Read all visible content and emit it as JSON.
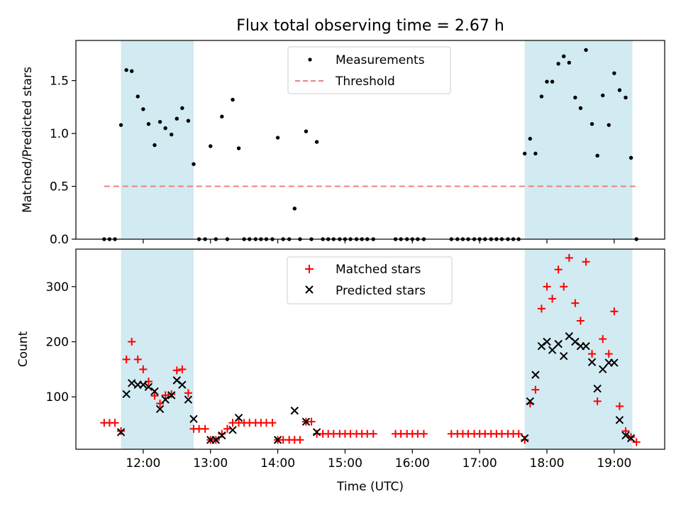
{
  "figure": {
    "title": "Flux total observing time = 2.67 h"
  },
  "chart_data": [
    {
      "type": "scatter",
      "ylabel": "Matched/Predicted stars",
      "xlabel": "",
      "xlim": [
        11.0,
        19.75
      ],
      "ylim": [
        0.0,
        1.88
      ],
      "yticks": [
        0.0,
        0.5,
        1.0,
        1.5
      ],
      "ytick_labels": [
        "0.0",
        "0.5",
        "1.0",
        "1.5"
      ],
      "xticks": [
        12,
        13,
        14,
        15,
        16,
        17,
        18,
        19
      ],
      "shaded_intervals": [
        [
          11.67,
          12.75
        ],
        [
          17.67,
          19.27
        ]
      ],
      "shade_color": "#add8e6",
      "legend_placement": "top-center",
      "series": [
        {
          "name": "Measurements",
          "kind": "points",
          "color": "#000000",
          "x": [
            11.42,
            11.5,
            11.58,
            11.67,
            11.75,
            11.83,
            11.92,
            12.0,
            12.08,
            12.17,
            12.25,
            12.33,
            12.42,
            12.5,
            12.58,
            12.67,
            12.75,
            12.83,
            12.92,
            13.0,
            13.08,
            13.17,
            13.25,
            13.33,
            13.42,
            13.5,
            13.58,
            13.67,
            13.75,
            13.83,
            13.92,
            14.0,
            14.08,
            14.17,
            14.25,
            14.33,
            14.42,
            14.5,
            14.58,
            14.67,
            14.75,
            14.83,
            14.92,
            15.0,
            15.08,
            15.17,
            15.25,
            15.33,
            15.42,
            15.75,
            15.83,
            15.92,
            16.0,
            16.08,
            16.17,
            16.58,
            16.67,
            16.75,
            16.83,
            16.92,
            17.0,
            17.08,
            17.17,
            17.25,
            17.33,
            17.42,
            17.5,
            17.58,
            17.67,
            17.75,
            17.83,
            17.92,
            18.0,
            18.08,
            18.17,
            18.25,
            18.33,
            18.42,
            18.5,
            18.58,
            18.67,
            18.75,
            18.83,
            18.92,
            19.0,
            19.08,
            19.17,
            19.25,
            19.33
          ],
          "y": [
            0,
            0,
            0,
            1.08,
            1.6,
            1.59,
            1.35,
            1.23,
            1.09,
            0.89,
            1.11,
            1.05,
            0.99,
            1.14,
            1.24,
            1.12,
            0.71,
            0,
            0,
            0.88,
            0,
            1.16,
            0,
            1.32,
            0.86,
            0,
            0,
            0,
            0,
            0,
            0,
            0.96,
            0,
            0,
            0.29,
            0,
            1.02,
            0,
            0.92,
            0,
            0,
            0,
            0,
            0,
            0,
            0,
            0,
            0,
            0,
            0,
            0,
            0,
            0,
            0,
            0,
            0,
            0,
            0,
            0,
            0,
            0,
            0,
            0,
            0,
            0,
            0,
            0,
            0,
            0.81,
            0.95,
            0.81,
            1.35,
            1.49,
            1.49,
            1.66,
            1.73,
            1.67,
            1.34,
            1.24,
            1.79,
            1.09,
            0.79,
            1.36,
            1.08,
            1.57,
            1.41,
            1.34,
            0.77,
            0
          ]
        },
        {
          "name": "Threshold",
          "kind": "dashed-line",
          "color": "#f08080",
          "x": [
            11.42,
            19.33
          ],
          "y": [
            0.5,
            0.5
          ]
        }
      ]
    },
    {
      "type": "scatter",
      "ylabel": "Count",
      "xlabel": "Time (UTC)",
      "xlim": [
        11.0,
        19.75
      ],
      "ylim": [
        5,
        368
      ],
      "yticks": [
        100,
        200,
        300
      ],
      "ytick_labels": [
        "100",
        "200",
        "300"
      ],
      "xticks": [
        12,
        13,
        14,
        15,
        16,
        17,
        18,
        19
      ],
      "xtick_labels": [
        "12:00",
        "13:00",
        "14:00",
        "15:00",
        "16:00",
        "17:00",
        "18:00",
        "19:00"
      ],
      "shaded_intervals": [
        [
          11.67,
          12.75
        ],
        [
          17.67,
          19.27
        ]
      ],
      "shade_color": "#add8e6",
      "legend_placement": "top-center",
      "series": [
        {
          "name": "Matched stars",
          "kind": "plus",
          "color": "#ff0000",
          "x": [
            11.42,
            11.5,
            11.58,
            11.67,
            11.75,
            11.83,
            11.92,
            12.0,
            12.08,
            12.17,
            12.25,
            12.33,
            12.42,
            12.5,
            12.58,
            12.67,
            12.75,
            12.83,
            12.92,
            13.0,
            13.08,
            13.17,
            13.25,
            13.33,
            13.42,
            13.5,
            13.58,
            13.67,
            13.75,
            13.83,
            13.92,
            14.0,
            14.08,
            14.17,
            14.25,
            14.33,
            14.42,
            14.5,
            14.58,
            14.67,
            14.75,
            14.83,
            14.92,
            15.0,
            15.08,
            15.17,
            15.25,
            15.33,
            15.42,
            15.75,
            15.83,
            15.92,
            16.0,
            16.08,
            16.17,
            16.58,
            16.67,
            16.75,
            16.83,
            16.92,
            17.0,
            17.08,
            17.17,
            17.25,
            17.33,
            17.42,
            17.5,
            17.58,
            17.67,
            17.75,
            17.83,
            17.92,
            18.0,
            18.08,
            18.17,
            18.25,
            18.33,
            18.42,
            18.5,
            18.58,
            18.67,
            18.75,
            18.83,
            18.92,
            19.0,
            19.08,
            19.17,
            19.25,
            19.33
          ],
          "y": [
            53,
            53,
            53,
            38,
            168,
            200,
            168,
            150,
            128,
            102,
            88,
            103,
            105,
            148,
            150,
            107,
            42,
            42,
            42,
            22,
            22,
            33,
            42,
            53,
            53,
            53,
            53,
            53,
            53,
            53,
            53,
            22,
            22,
            22,
            22,
            22,
            55,
            55,
            33,
            33,
            33,
            33,
            33,
            33,
            33,
            33,
            33,
            33,
            33,
            33,
            33,
            33,
            33,
            33,
            33,
            33,
            33,
            33,
            33,
            33,
            33,
            33,
            33,
            33,
            33,
            33,
            33,
            33,
            22,
            88,
            113,
            260,
            300,
            278,
            331,
            300,
            352,
            270,
            238,
            345,
            178,
            92,
            205,
            178,
            255,
            83,
            38,
            27,
            18
          ]
        },
        {
          "name": "Predicted stars",
          "kind": "x",
          "color": "#000000",
          "x": [
            11.67,
            11.75,
            11.83,
            11.92,
            12.0,
            12.08,
            12.17,
            12.25,
            12.33,
            12.42,
            12.5,
            12.58,
            12.67,
            12.75,
            13.0,
            13.08,
            13.17,
            13.33,
            13.42,
            14.0,
            14.25,
            14.42,
            14.58,
            17.67,
            17.75,
            17.83,
            17.92,
            18.0,
            18.08,
            18.17,
            18.25,
            18.33,
            18.42,
            18.5,
            18.58,
            18.67,
            18.75,
            18.83,
            18.92,
            19.0,
            19.08,
            19.17,
            19.25
          ],
          "y": [
            36,
            105,
            125,
            122,
            122,
            118,
            110,
            78,
            95,
            103,
            130,
            122,
            95,
            60,
            22,
            22,
            30,
            40,
            62,
            22,
            75,
            55,
            36,
            25,
            92,
            140,
            192,
            200,
            185,
            196,
            174,
            210,
            200,
            192,
            192,
            163,
            115,
            150,
            162,
            162,
            58,
            30,
            25
          ]
        }
      ]
    }
  ]
}
